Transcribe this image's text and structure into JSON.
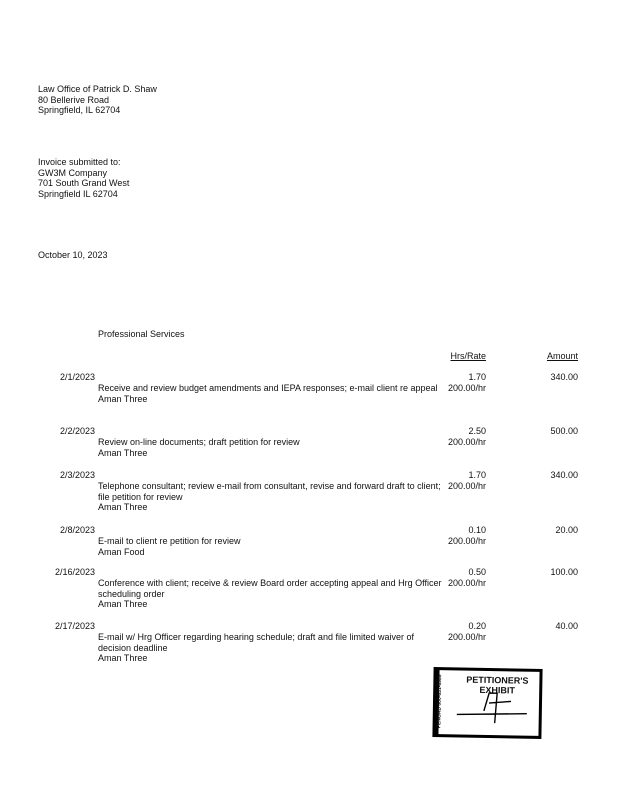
{
  "sender": {
    "lines": [
      "Law Office of Patrick D. Shaw",
      "80 Bellerive Road",
      "Springfield, IL 62704"
    ]
  },
  "recipient": {
    "lines": [
      "Invoice submitted to:",
      "GW3M Company",
      "701 South Grand West",
      "Springfield IL 62704"
    ]
  },
  "date": "October 10, 2023",
  "section_title": "Professional Services",
  "columns": {
    "hrs_rate": "Hrs/Rate",
    "amount": "Amount"
  },
  "entries": [
    {
      "date": "2/1/2023",
      "description": "Receive and review budget amendments and IEPA responses; e-mail client re appeal",
      "staff": "Aman Three",
      "hours": "1.70",
      "rate": "200.00/hr",
      "amount": "340.00"
    },
    {
      "date": "2/2/2023",
      "description": "Review on-line documents; draft petition for review",
      "staff": "Aman Three",
      "hours": "2.50",
      "rate": "200.00/hr",
      "amount": "500.00"
    },
    {
      "date": "2/3/2023",
      "description": "Telephone consultant; review e-mail from consultant, revise and forward draft to client; file petition for review",
      "staff": "Aman Three",
      "hours": "1.70",
      "rate": "200.00/hr",
      "amount": "340.00"
    },
    {
      "date": "2/8/2023",
      "description": "E-mail to client re petition for review",
      "staff": "Aman Food",
      "hours": "0.10",
      "rate": "200.00/hr",
      "amount": "20.00"
    },
    {
      "date": "2/16/2023",
      "description": "Conference with client; receive & review Board order accepting appeal and Hrg Officer scheduling order",
      "staff": "Aman Three",
      "hours": "0.50",
      "rate": "200.00/hr",
      "amount": "100.00"
    },
    {
      "date": "2/17/2023",
      "description": "E-mail w/ Hrg Officer regarding hearing schedule; draft and file limited waiver of decision deadline",
      "staff": "Aman Three",
      "hours": "0.20",
      "rate": "200.00/hr",
      "amount": "40.00"
    }
  ],
  "stamp": {
    "title_line1": "PETITIONER'S",
    "title_line2": "EXHIBIT",
    "side_text": "PENGAD 800-631-6989"
  }
}
